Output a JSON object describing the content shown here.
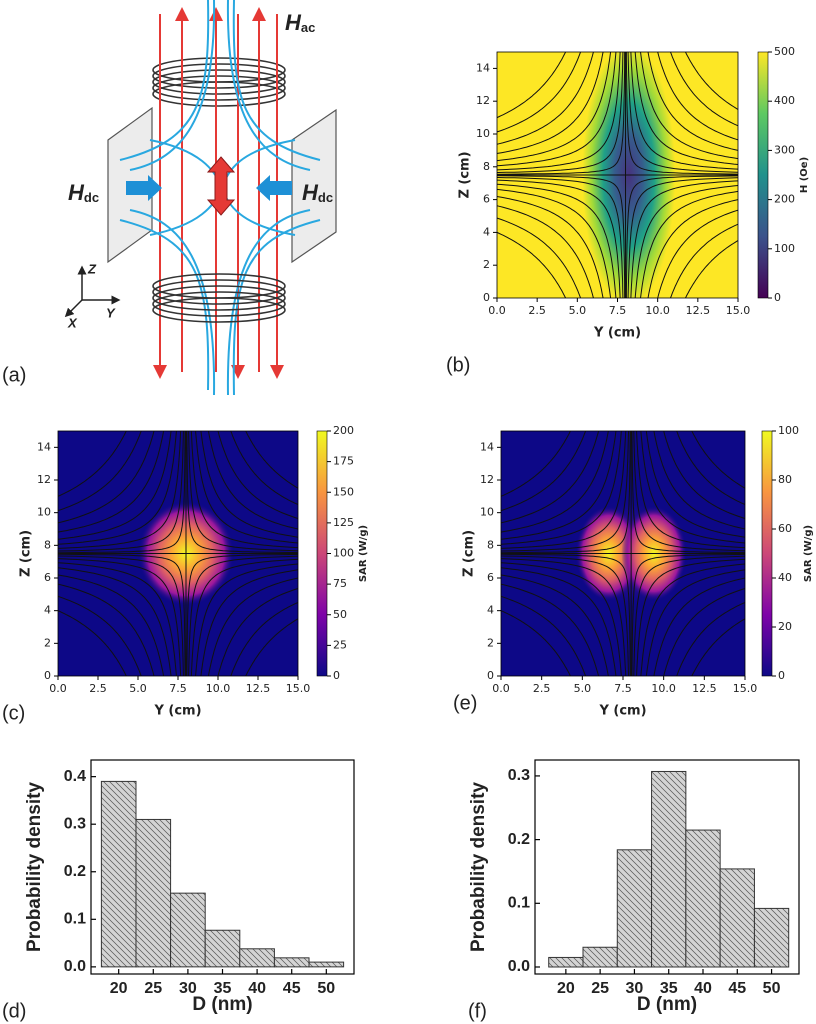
{
  "panel_a": {
    "label": "(a)",
    "h_ac": {
      "symbol": "H",
      "subscript": "ac"
    },
    "h_dc": {
      "symbol": "H",
      "subscript": "dc"
    },
    "axes": {
      "z": "Z",
      "y": "Y",
      "x": "X"
    }
  },
  "chart_data": [
    {
      "type": "heatmap",
      "panel_label": "(b)",
      "colormap": "viridis",
      "xlabel": "Y (cm)",
      "ylabel": "Z (cm)",
      "xlim": [
        0,
        15
      ],
      "ylim": [
        0,
        15
      ],
      "xticks": [
        {
          "value": 0,
          "label": "0.0"
        },
        2.5,
        {
          "value": 5,
          "label": "5.0"
        },
        7.5,
        {
          "value": 10,
          "label": "10.0"
        },
        12.5,
        {
          "value": 15,
          "label": "15.0"
        }
      ],
      "yticks": [
        0,
        2,
        4,
        6,
        8,
        10,
        12,
        14
      ],
      "colorbar": {
        "label": "H (Oe)",
        "lim": [
          0,
          500
        ],
        "ticks": [
          0,
          100,
          200,
          300,
          400,
          500
        ]
      }
    },
    {
      "type": "heatmap",
      "panel_label": "(c)",
      "colormap": "plasma",
      "xlabel": "Y (cm)",
      "ylabel": "Z (cm)",
      "xlim": [
        0,
        15
      ],
      "ylim": [
        0,
        15
      ],
      "xticks": [
        {
          "value": 0,
          "label": "0.0"
        },
        2.5,
        {
          "value": 5,
          "label": "5.0"
        },
        7.5,
        {
          "value": 10,
          "label": "10.0"
        },
        12.5,
        {
          "value": 15,
          "label": "15.0"
        }
      ],
      "yticks": [
        0,
        2,
        4,
        6,
        8,
        10,
        12,
        14
      ],
      "colorbar": {
        "label": "SAR (W/g)",
        "lim": [
          0,
          200
        ],
        "ticks": [
          0,
          25,
          50,
          75,
          100,
          125,
          150,
          175,
          200
        ]
      }
    },
    {
      "type": "heatmap",
      "panel_label": "(e)",
      "colormap": "plasma",
      "xlabel": "Y (cm)",
      "ylabel": "Z (cm)",
      "xlim": [
        0,
        15
      ],
      "ylim": [
        0,
        15
      ],
      "xticks": [
        {
          "value": 0,
          "label": "0.0"
        },
        2.5,
        {
          "value": 5,
          "label": "5.0"
        },
        7.5,
        {
          "value": 10,
          "label": "10.0"
        },
        12.5,
        {
          "value": 15,
          "label": "15.0"
        }
      ],
      "yticks": [
        0,
        2,
        4,
        6,
        8,
        10,
        12,
        14
      ],
      "colorbar": {
        "label": "SAR (W/g)",
        "lim": [
          0,
          100
        ],
        "ticks": [
          0,
          20,
          40,
          60,
          80,
          100
        ]
      }
    },
    {
      "type": "histogram",
      "panel_label": "(d)",
      "xlabel": "D (nm)",
      "ylabel": "Probability density",
      "color": "#d4d4d4",
      "hatch": true,
      "bins": [
        17.5,
        22.5,
        27.5,
        32.5,
        37.5,
        42.5,
        47.5,
        52.5
      ],
      "values": [
        0.39,
        0.31,
        0.155,
        0.077,
        0.038,
        0.019,
        0.01
      ],
      "xlim": [
        16,
        54
      ],
      "ylim": [
        -0.015,
        0.435
      ],
      "xticks": [
        20,
        25,
        30,
        35,
        40,
        45,
        50
      ],
      "yticks": [
        {
          "value": 0,
          "label": "0.0"
        },
        0.1,
        0.2,
        0.3,
        0.4
      ]
    },
    {
      "type": "histogram",
      "panel_label": "(f)",
      "xlabel": "D (nm)",
      "ylabel": "Probability density",
      "color": "#d4d4d4",
      "hatch": true,
      "bins": [
        17.5,
        22.5,
        27.5,
        32.5,
        37.5,
        42.5,
        47.5,
        52.5
      ],
      "values": [
        0.015,
        0.031,
        0.184,
        0.307,
        0.215,
        0.154,
        0.092
      ],
      "xlim": [
        15.5,
        54
      ],
      "ylim": [
        -0.011,
        0.325
      ],
      "xticks": [
        20,
        25,
        30,
        35,
        40,
        45,
        50
      ],
      "yticks": [
        {
          "value": 0,
          "label": "0.0"
        },
        0.1,
        0.2,
        0.3
      ]
    }
  ]
}
